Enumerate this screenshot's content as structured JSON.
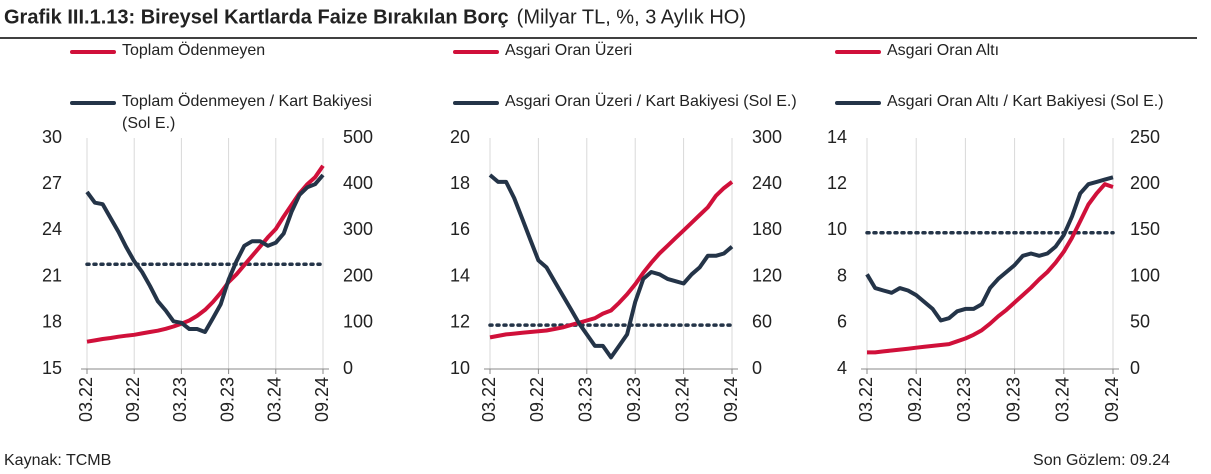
{
  "header": {
    "title": "Grafik III.1.13: Bireysel Kartlarda Faize Bırakılan Borç",
    "subtitle": "(Milyar TL, %, 3 Aylık HO)"
  },
  "footer": {
    "source": "Kaynak: TCMB",
    "note": "Son Gözlem: 09.24"
  },
  "chart_data": [
    {
      "type": "line",
      "categories": [
        "03.22",
        null,
        null,
        null,
        null,
        null,
        "09.22",
        null,
        null,
        null,
        null,
        null,
        "03.23",
        null,
        null,
        null,
        null,
        null,
        "09.23",
        null,
        null,
        null,
        null,
        null,
        "03.24",
        null,
        null,
        null,
        null,
        null,
        "09.24"
      ],
      "series": [
        {
          "name": "Toplam Ödenmeyen",
          "color": "#d0103a",
          "axis": "y2",
          "values": [
            59,
            62,
            65,
            67,
            70,
            72,
            74,
            77,
            80,
            83,
            87,
            92,
            98,
            105,
            115,
            128,
            145,
            165,
            188,
            205,
            225,
            245,
            265,
            285,
            303,
            330,
            355,
            380,
            400,
            415,
            440
          ]
        },
        {
          "name": "Toplam Ödenmeyen / Kart Bakiyesi (Sol E.)",
          "color": "#243448",
          "axis": "y",
          "values": [
            26.5,
            25.8,
            25.7,
            24.8,
            23.9,
            22.9,
            22.0,
            21.3,
            20.4,
            19.4,
            18.8,
            18.1,
            18.0,
            17.6,
            17.6,
            17.4,
            18.3,
            19.2,
            20.8,
            22.0,
            23.0,
            23.3,
            23.3,
            23.0,
            23.2,
            23.8,
            25.2,
            26.3,
            26.8,
            27.0,
            27.6
          ]
        }
      ],
      "reference_line": {
        "value": 21.8,
        "axis": "y",
        "color": "#243448"
      },
      "ylim": [
        15,
        30
      ],
      "yticks": [
        15,
        18,
        21,
        24,
        27,
        30
      ],
      "y2lim": [
        0,
        500
      ],
      "y2ticks": [
        0,
        100,
        200,
        300,
        400,
        500
      ],
      "grid": true
    },
    {
      "type": "line",
      "categories": [
        "03.22",
        null,
        null,
        null,
        null,
        null,
        "09.22",
        null,
        null,
        null,
        null,
        null,
        "03.23",
        null,
        null,
        null,
        null,
        null,
        "09.23",
        null,
        null,
        null,
        null,
        null,
        "03.24",
        null,
        null,
        null,
        null,
        null,
        "09.24"
      ],
      "series": [
        {
          "name": "Asgari Oran Üzeri",
          "color": "#d0103a",
          "axis": "y2",
          "values": [
            41,
            43,
            45,
            46,
            47,
            48,
            49,
            50,
            52,
            54,
            57,
            60,
            63,
            66,
            72,
            76,
            86,
            97,
            110,
            125,
            138,
            150,
            160,
            170,
            180,
            190,
            200,
            210,
            225,
            235,
            243
          ]
        },
        {
          "name": "Asgari Oran Üzeri / Kart Bakiyesi (Sol E.)",
          "color": "#243448",
          "axis": "y",
          "values": [
            18.4,
            18.1,
            18.1,
            17.4,
            16.5,
            15.6,
            14.7,
            14.4,
            13.8,
            13.2,
            12.6,
            12.0,
            11.5,
            11.0,
            11.0,
            10.5,
            11.0,
            11.5,
            12.9,
            13.9,
            14.2,
            14.1,
            13.9,
            13.8,
            13.7,
            14.1,
            14.4,
            14.9,
            14.9,
            15.0,
            15.3
          ]
        }
      ],
      "reference_line": {
        "value": 11.9,
        "axis": "y",
        "color": "#243448"
      },
      "ylim": [
        10,
        20
      ],
      "yticks": [
        10,
        12,
        14,
        16,
        18,
        20
      ],
      "y2lim": [
        0,
        300
      ],
      "y2ticks": [
        0,
        60,
        120,
        180,
        240,
        300
      ],
      "grid": true
    },
    {
      "type": "line",
      "categories": [
        "03.22",
        null,
        null,
        null,
        null,
        null,
        "09.22",
        null,
        null,
        null,
        null,
        null,
        "03.23",
        null,
        null,
        null,
        null,
        null,
        "09.23",
        null,
        null,
        null,
        null,
        null,
        "03.24",
        null,
        null,
        null,
        null,
        null,
        "09.24"
      ],
      "series": [
        {
          "name": "Asgari Oran Altı",
          "color": "#d0103a",
          "axis": "y2",
          "values": [
            18,
            18,
            19,
            20,
            21,
            22,
            23,
            24,
            25,
            26,
            27,
            30,
            33,
            37,
            42,
            49,
            57,
            64,
            72,
            80,
            88,
            97,
            105,
            115,
            127,
            142,
            160,
            178,
            190,
            200,
            197
          ]
        },
        {
          "name": "Asgari Oran Altı / Kart Bakiyesi (Sol E.)",
          "color": "#243448",
          "axis": "y",
          "values": [
            8.1,
            7.5,
            7.4,
            7.3,
            7.5,
            7.4,
            7.2,
            6.9,
            6.6,
            6.1,
            6.2,
            6.5,
            6.6,
            6.6,
            6.8,
            7.5,
            7.9,
            8.2,
            8.5,
            8.9,
            9.0,
            8.9,
            9.0,
            9.3,
            9.8,
            10.6,
            11.6,
            12.0,
            12.1,
            12.2,
            12.3
          ]
        }
      ],
      "reference_line": {
        "value": 9.9,
        "axis": "y",
        "color": "#243448"
      },
      "ylim": [
        4,
        14
      ],
      "yticks": [
        4,
        6,
        8,
        10,
        12,
        14
      ],
      "y2lim": [
        0,
        250
      ],
      "y2ticks": [
        0,
        50,
        100,
        150,
        200,
        250
      ],
      "grid": true
    }
  ]
}
